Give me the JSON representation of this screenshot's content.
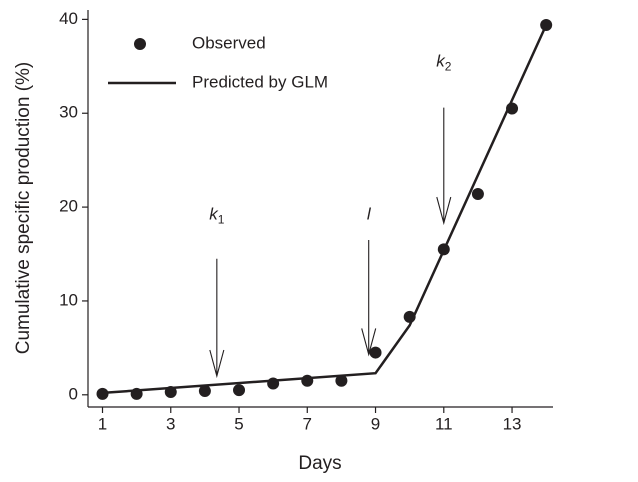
{
  "chart_data": {
    "type": "line",
    "xlabel": "Days",
    "ylabel": "Cumulative specific production (%)",
    "xlim": [
      0.575,
      14.2
    ],
    "ylim": [
      -1.3,
      41
    ],
    "xticks": [
      1,
      3,
      5,
      7,
      9,
      11,
      13
    ],
    "yticks": [
      0,
      10,
      20,
      30,
      40
    ],
    "legend": "upper left",
    "series": [
      {
        "name": "Observed",
        "style": "markers",
        "color": "#231f20",
        "x": [
          1,
          2,
          3,
          4,
          5,
          6,
          7,
          8,
          9,
          10,
          11,
          12,
          13,
          14
        ],
        "values": [
          0.1,
          0.1,
          0.3,
          0.4,
          0.5,
          1.2,
          1.5,
          1.5,
          4.5,
          8.3,
          15.5,
          21.4,
          30.5,
          39.4
        ]
      },
      {
        "name": "Predicted by GLM",
        "style": "line",
        "color": "#231f20",
        "x": [
          1,
          9,
          10,
          14
        ],
        "values": [
          0.2,
          2.3,
          7.4,
          39.4
        ]
      }
    ],
    "annotations": [
      {
        "text": "k",
        "sub": "1",
        "x": 4.35,
        "label_y": 19.1,
        "y_from": 14.5,
        "y_to": 2
      },
      {
        "text": "l",
        "x": 8.8,
        "label_y": 19.1,
        "y_from": 16.5,
        "y_to": 4.3
      },
      {
        "text": "k",
        "sub": "2",
        "x": 11,
        "label_y": 35.4,
        "y_from": 30.6,
        "y_to": 18.3
      }
    ]
  }
}
